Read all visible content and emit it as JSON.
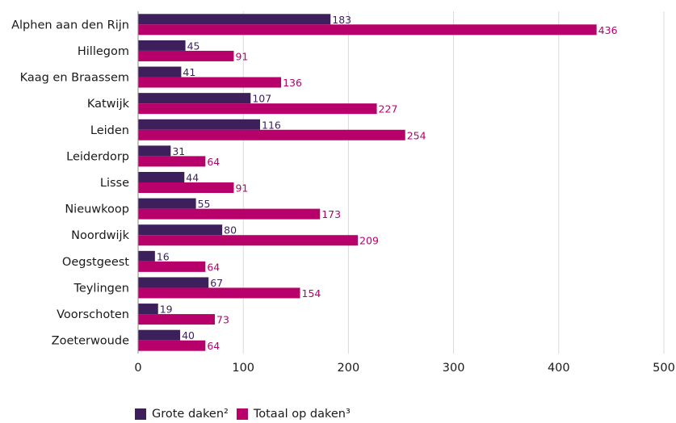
{
  "chart_data": {
    "type": "bar",
    "orientation": "horizontal",
    "categories": [
      "Alphen aan den Rijn",
      "Hillegom",
      "Kaag en Braassem",
      "Katwijk",
      "Leiden",
      "Leiderdorp",
      "Lisse",
      "Nieuwkoop",
      "Noordwijk",
      "Oegstgeest",
      "Teylingen",
      "Voorschoten",
      "Zoeterwoude"
    ],
    "series": [
      {
        "name": "Grote daken²",
        "color": "#3d1f5c",
        "values": [
          183,
          45,
          41,
          107,
          116,
          31,
          44,
          55,
          80,
          16,
          67,
          19,
          40
        ]
      },
      {
        "name": "Totaal op daken³",
        "color": "#b8006b",
        "values": [
          436,
          91,
          136,
          227,
          254,
          64,
          91,
          173,
          209,
          64,
          154,
          73,
          64
        ]
      }
    ],
    "xlim": [
      0,
      500
    ],
    "xticks": [
      0,
      100,
      200,
      300,
      400,
      500
    ],
    "grid": true,
    "legend_position": "bottom-left"
  }
}
